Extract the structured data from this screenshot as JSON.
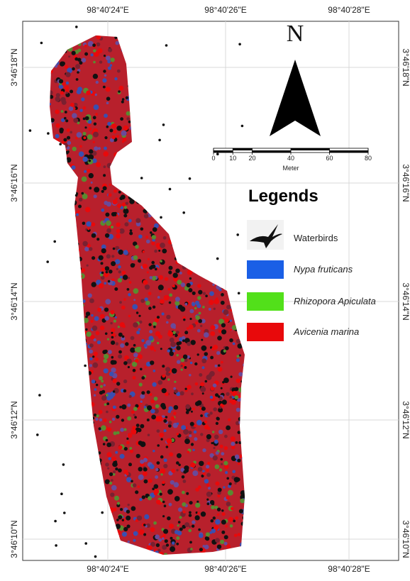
{
  "map": {
    "x_labels": [
      "98°40'24\"E",
      "98°40'26\"E",
      "98°40'28\"E"
    ],
    "y_labels": [
      "3°46'18\"N",
      "3°46'16\"N",
      "3°46'14\"N",
      "3°46'12\"N",
      "3°46'10\"N"
    ],
    "north": "N",
    "scale_bar": {
      "ticks": [
        0,
        10,
        20,
        40,
        60,
        80
      ],
      "unit": "Meter"
    },
    "legend": {
      "title": "Legends",
      "items": [
        {
          "label": "Waterbirds"
        },
        {
          "label": "Nypa fruticans",
          "color": "#1a5fe6"
        },
        {
          "label": "Rhizopora Apiculata",
          "color": "#52e01a"
        },
        {
          "label": "Avicenia marina",
          "color": "#e8090b"
        }
      ]
    }
  }
}
